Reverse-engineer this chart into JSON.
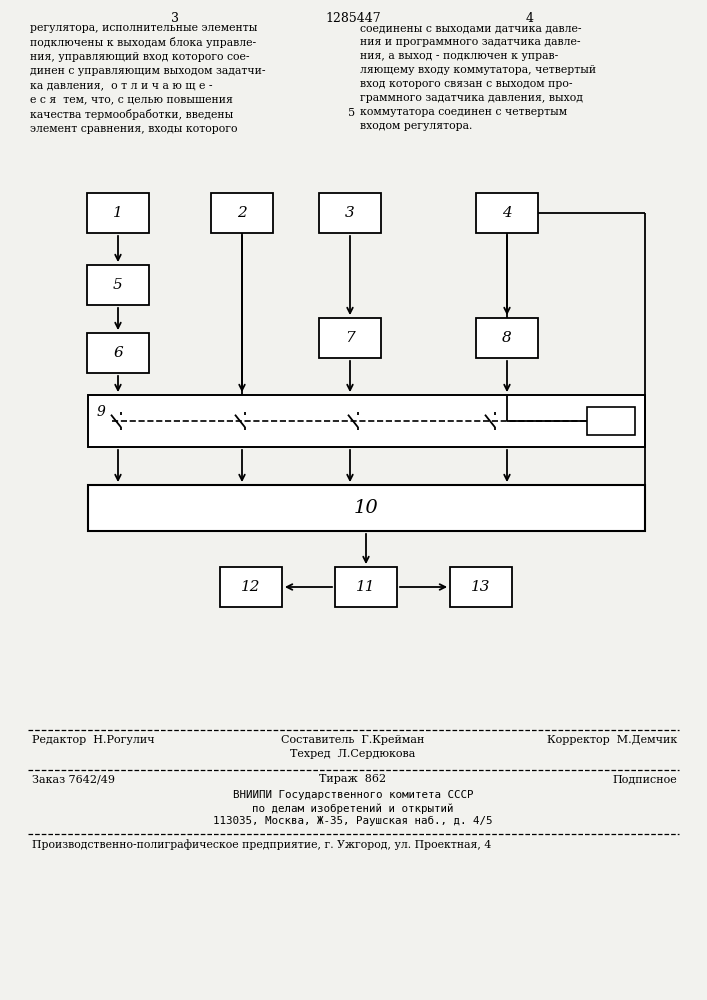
{
  "bg_color": "#f2f2ee",
  "page_num_left": "3",
  "page_num_center": "1285447",
  "page_num_right": "4",
  "text_left": "регулятора, исполнительные элементы\nподключены к выходам блока управле-\nния, управляющий вход которого сое-\nдинен с управляющим выходом задатчи-\nка давления,  о т л и ч а ю щ е -\nе с я  тем, что, с целью повышения\nкачества термообработки, введены\nэлемент сравнения, входы которого",
  "text_right": "соединены с выходами датчика давле-\nния и программного задатчика давле-\nния, а выход - подключен к управ-\nляющему входу коммутатора, четвертый\nвход которого связан с выходом про-\nграммного задатчика давления, выход\nкоммутатора соединен с четвертым\nвходом регулятора.",
  "num5": "5",
  "footer_editor": "Редактор  Н.Рогулич",
  "footer_composer": "Составитель  Г.Крейман",
  "footer_techred": "Техред  Л.Сердюкова",
  "footer_corrector": "Корректор  М.Демчик",
  "footer_order": "Заказ 7642/49",
  "footer_print": "Тираж  862",
  "footer_sub": "Подписное",
  "footer_org1": "ВНИИПИ Государственного комитета СССР",
  "footer_org2": "по делам изобретений и открытий",
  "footer_org3": "113035, Москва, Ж-35, Раушская наб., д. 4/5",
  "footer_bottom": "Производственно-полиграфическое предприятие, г. Ужгород, ул. Проектная, 4"
}
